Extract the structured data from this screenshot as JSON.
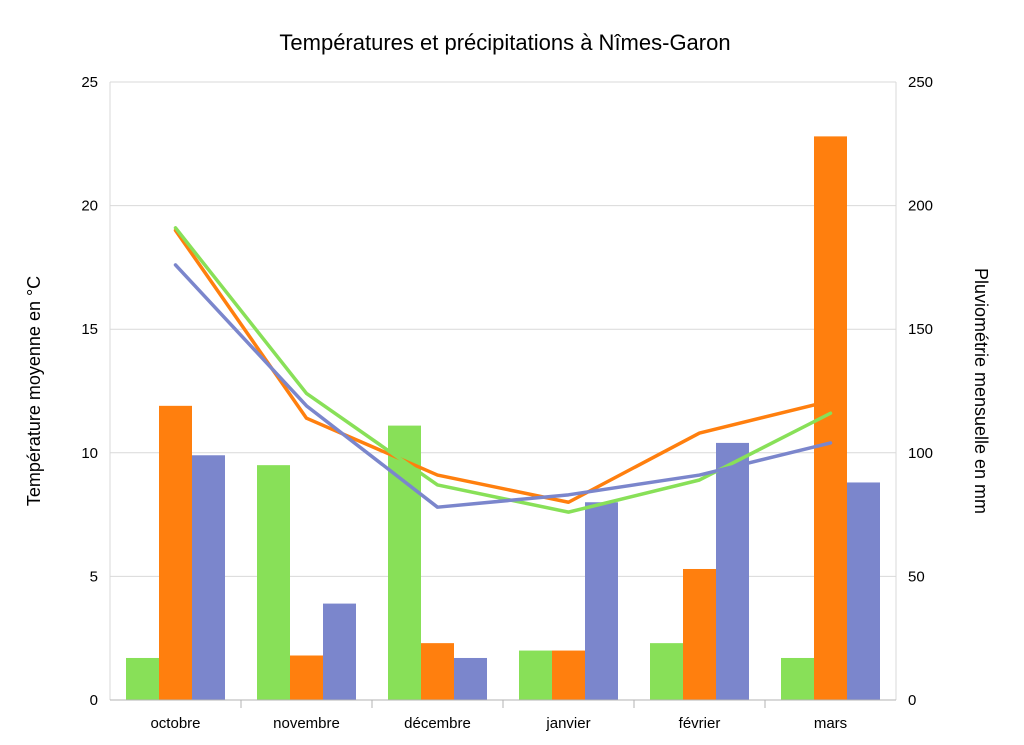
{
  "chart_data": {
    "type": "bar+line",
    "title": "Températures et précipitations à Nîmes-Garon",
    "ylabel_left": "Température moyenne en °C",
    "ylabel_right": "Pluviométrie mensuelle en mm",
    "categories": [
      "octobre",
      "novembre",
      "décembre",
      "janvier",
      "février",
      "mars"
    ],
    "ylim_left": [
      0,
      25
    ],
    "yticks_left": [
      "0",
      "5",
      "10",
      "15",
      "20",
      "25"
    ],
    "ylim_right": [
      0,
      250
    ],
    "yticks_right": [
      "0",
      "50",
      "100",
      "150",
      "200",
      "250"
    ],
    "grid": true,
    "bar_series": [
      {
        "color": "#88e058",
        "values": [
          17,
          95,
          111,
          20,
          23,
          17
        ]
      },
      {
        "color": "#ff7f0e",
        "values": [
          119,
          18,
          23,
          20,
          53,
          228
        ]
      },
      {
        "color": "#7b86cc",
        "values": [
          99,
          39,
          17,
          80,
          104,
          88
        ]
      }
    ],
    "line_series": [
      {
        "color": "#ff7f0e",
        "values": [
          19.0,
          11.4,
          9.1,
          8.0,
          10.8,
          12.1
        ]
      },
      {
        "color": "#88e058",
        "values": [
          19.1,
          12.4,
          8.7,
          7.6,
          8.9,
          11.6
        ]
      },
      {
        "color": "#7b86cc",
        "values": [
          17.6,
          11.9,
          7.8,
          8.3,
          9.1,
          10.4
        ]
      }
    ]
  }
}
